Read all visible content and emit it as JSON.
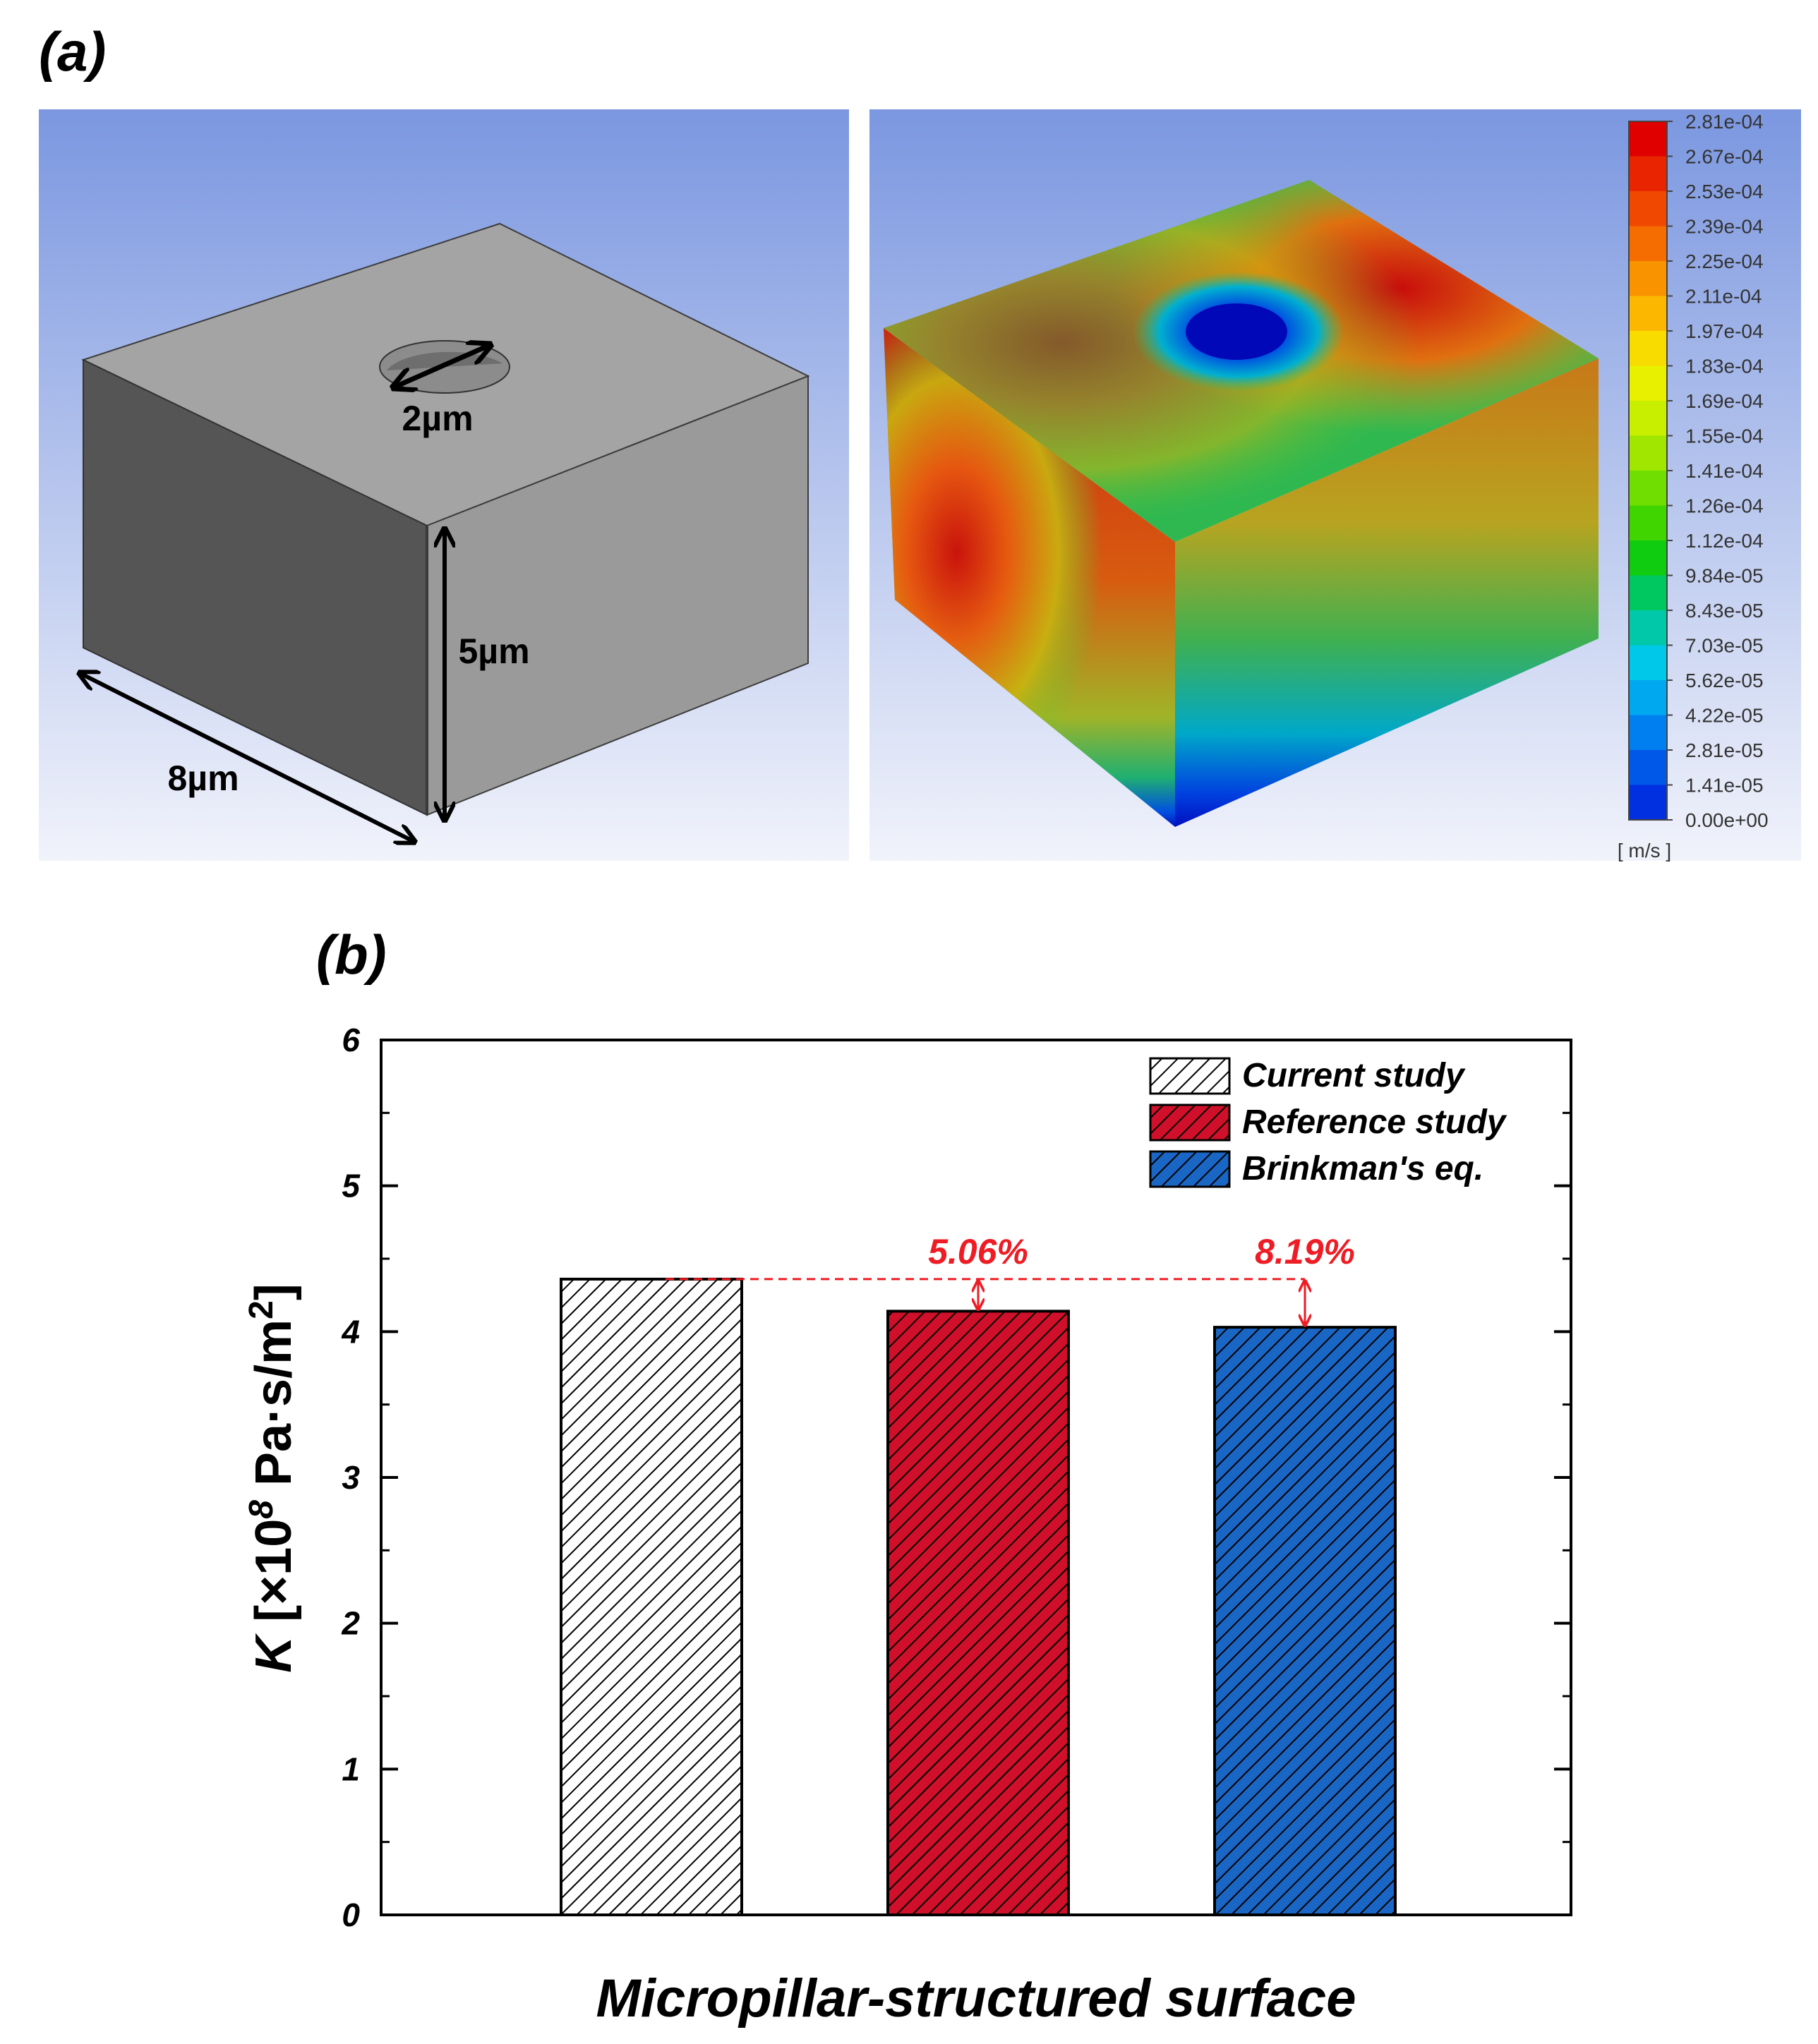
{
  "panel_a": {
    "label": "(a)",
    "geometry": {
      "hole_diameter": "2µm",
      "height": "5µm",
      "width": "8µm"
    },
    "contour_legend": {
      "unit": "[ m/s ]",
      "values": [
        "2.81e-04",
        "2.67e-04",
        "2.53e-04",
        "2.39e-04",
        "2.25e-04",
        "2.11e-04",
        "1.97e-04",
        "1.83e-04",
        "1.69e-04",
        "1.55e-04",
        "1.41e-04",
        "1.26e-04",
        "1.12e-04",
        "9.84e-05",
        "8.43e-05",
        "7.03e-05",
        "5.62e-05",
        "4.22e-05",
        "2.81e-05",
        "1.41e-05",
        "0.00e+00"
      ],
      "colors": [
        "#e00000",
        "#e92400",
        "#f04800",
        "#f56c00",
        "#f99400",
        "#fcb800",
        "#f8dc00",
        "#e8f000",
        "#c8ee00",
        "#a0e600",
        "#70de00",
        "#40d400",
        "#10cc10",
        "#00c860",
        "#00c8a8",
        "#00c8e8",
        "#00a8f0",
        "#0080f0",
        "#0058e8",
        "#0030e0",
        "#0000d0"
      ]
    }
  },
  "panel_b": {
    "label": "(b)",
    "annotations": [
      {
        "text": "5.06%",
        "from_series": 0,
        "to_series": 1
      },
      {
        "text": "8.19%",
        "from_series": 0,
        "to_series": 2
      }
    ],
    "colors": {
      "current": "#ffffff",
      "reference": "#d0102a",
      "brinkman": "#1a66c4",
      "annotation": "#ee1c24"
    }
  },
  "chart_data": {
    "type": "bar",
    "categories": [
      "Current study",
      "Reference study",
      "Brinkman's eq."
    ],
    "values": [
      4.36,
      4.14,
      4.03
    ],
    "title": "",
    "xlabel": "Micropillar-structured surface",
    "ylabel": "K [×10⁸ Pa·s/m²]",
    "ylabel_parts": {
      "symbol": "K",
      "prefix": " [×10",
      "exp": "8",
      "mid": " Pa·s/m",
      "exp2": "2",
      "suffix": "]"
    },
    "ylim": [
      0,
      6
    ],
    "yticks": [
      "0",
      "1",
      "2",
      "3",
      "4",
      "5",
      "6"
    ],
    "legend": [
      "Current study",
      "Reference study",
      "Brinkman's eq."
    ],
    "legend_position": "top-right",
    "grid": false
  }
}
